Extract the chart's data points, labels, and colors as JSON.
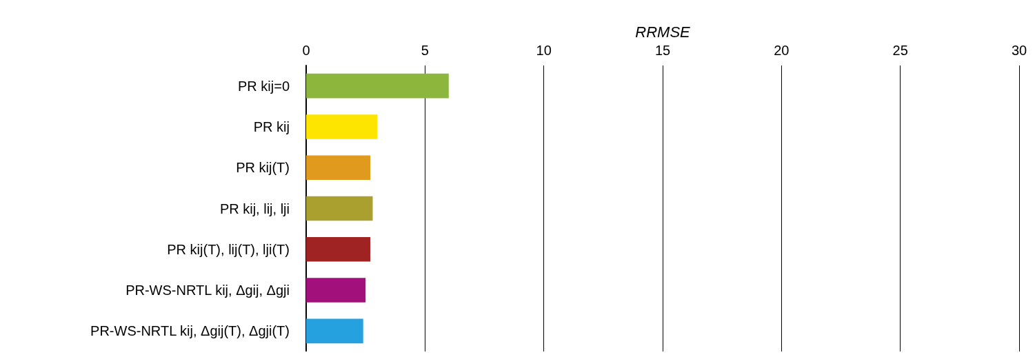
{
  "chart_data": {
    "type": "bar",
    "orientation": "horizontal",
    "xlabel": "RRMSE",
    "categories": [
      "PR kij=0",
      "PR kij",
      "PR kij(T)",
      "PR kij, lij, lji",
      "PR kij(T), lij(T), lji(T)",
      "PR-WS-NRTL kij, Δgij, Δgji",
      "PR-WS-NRTL kij, Δgij(T), Δgji(T)"
    ],
    "values": [
      6.0,
      3.0,
      2.7,
      2.8,
      2.7,
      2.5,
      2.4
    ],
    "colors": [
      "#8db63c",
      "#fde500",
      "#e09b1e",
      "#aaa02f",
      "#a02324",
      "#a2117b",
      "#25a1e0"
    ],
    "xlim": [
      0,
      30
    ],
    "xticks": [
      0,
      5,
      10,
      15,
      20,
      25,
      30
    ],
    "grid": "x"
  }
}
